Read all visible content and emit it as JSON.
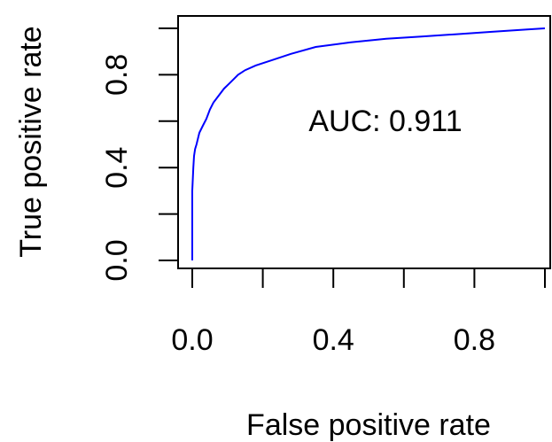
{
  "chart_data": {
    "type": "line",
    "title": "",
    "xlabel": "False positive rate",
    "ylabel": "True positive rate",
    "xlim": [
      0,
      1
    ],
    "ylim": [
      0,
      1
    ],
    "x_ticks": [
      0,
      0.2,
      0.4,
      0.6,
      0.8,
      1.0
    ],
    "x_tick_labels": [
      "0.0",
      "",
      "0.4",
      "",
      "0.8",
      ""
    ],
    "y_ticks": [
      0,
      0.2,
      0.4,
      0.6,
      0.8,
      1.0
    ],
    "y_tick_labels": [
      "0.0",
      "",
      "0.4",
      "",
      "0.8",
      ""
    ],
    "grid": false,
    "legend": "none",
    "annotation": "AUC: 0.911",
    "series": [
      {
        "color": "#0000ff",
        "x": [
          0.0,
          0.0,
          0.003,
          0.005,
          0.008,
          0.012,
          0.02,
          0.03,
          0.04,
          0.05,
          0.06,
          0.075,
          0.09,
          0.11,
          0.13,
          0.15,
          0.18,
          0.22,
          0.28,
          0.35,
          0.45,
          0.55,
          0.65,
          0.75,
          0.85,
          0.95,
          1.0
        ],
        "y": [
          0.0,
          0.3,
          0.4,
          0.45,
          0.48,
          0.5,
          0.55,
          0.58,
          0.61,
          0.65,
          0.68,
          0.71,
          0.74,
          0.77,
          0.8,
          0.82,
          0.84,
          0.86,
          0.89,
          0.92,
          0.94,
          0.955,
          0.965,
          0.975,
          0.985,
          0.995,
          1.0
        ]
      }
    ]
  }
}
